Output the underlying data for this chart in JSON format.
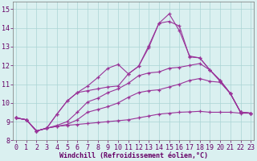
{
  "bg_color": "#daf0f0",
  "grid_color": "#aad4d4",
  "line_color": "#993399",
  "xlim": [
    -0.3,
    23.3
  ],
  "ylim": [
    8.0,
    15.4
  ],
  "xticks": [
    0,
    1,
    2,
    3,
    4,
    5,
    6,
    7,
    8,
    9,
    10,
    11,
    12,
    13,
    14,
    15,
    16,
    17,
    18,
    19,
    20,
    21,
    22,
    23
  ],
  "yticks": [
    8,
    9,
    10,
    11,
    12,
    13,
    14,
    15
  ],
  "xlabel": "Windchill (Refroidissement éolien,°C)",
  "series": [
    [
      9.2,
      9.1,
      8.5,
      8.65,
      8.75,
      8.8,
      8.85,
      8.9,
      8.95,
      9.0,
      9.05,
      9.1,
      9.2,
      9.3,
      9.4,
      9.45,
      9.5,
      9.52,
      9.55,
      9.5,
      9.5,
      9.5,
      9.45,
      9.45
    ],
    [
      9.2,
      9.1,
      8.5,
      8.65,
      8.75,
      8.85,
      9.1,
      9.5,
      9.65,
      9.8,
      10.0,
      10.3,
      10.55,
      10.65,
      10.7,
      10.85,
      11.0,
      11.2,
      11.3,
      11.15,
      11.1,
      10.5,
      9.5,
      9.45
    ],
    [
      9.2,
      9.1,
      8.5,
      8.65,
      8.8,
      9.0,
      9.5,
      10.05,
      10.25,
      10.55,
      10.75,
      11.05,
      11.45,
      11.6,
      11.65,
      11.85,
      11.9,
      12.0,
      12.1,
      11.75,
      11.15,
      10.5,
      9.5,
      9.45
    ],
    [
      9.2,
      9.1,
      8.5,
      8.65,
      9.4,
      10.1,
      10.55,
      10.65,
      10.75,
      10.85,
      10.9,
      11.55,
      11.95,
      12.95,
      14.25,
      14.35,
      14.1,
      12.45,
      12.4,
      11.75,
      11.2,
      10.5,
      9.5,
      9.45
    ],
    [
      9.2,
      9.1,
      8.5,
      8.65,
      9.4,
      10.1,
      10.55,
      10.9,
      11.35,
      11.85,
      12.05,
      11.55,
      11.95,
      13.05,
      14.25,
      14.75,
      13.85,
      12.5,
      12.4,
      11.75,
      11.2,
      10.5,
      9.5,
      9.45
    ]
  ],
  "tick_fontsize": 6,
  "xlabel_fontsize": 6,
  "xlabel_color": "#660066",
  "tick_color": "#660066"
}
